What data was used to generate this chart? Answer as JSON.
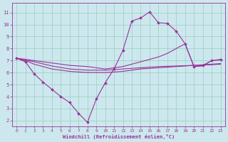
{
  "xlabel": "Windchill (Refroidissement éolien,°C)",
  "bg_color": "#cce8ee",
  "line_color": "#993399",
  "grid_color": "#99ccbb",
  "x_ticks": [
    0,
    1,
    2,
    3,
    4,
    5,
    6,
    7,
    8,
    9,
    10,
    11,
    12,
    13,
    14,
    15,
    16,
    17,
    18,
    19,
    20,
    21,
    22,
    23
  ],
  "y_ticks": [
    2,
    3,
    4,
    5,
    6,
    7,
    8,
    9,
    10,
    11
  ],
  "ylim": [
    1.5,
    11.8
  ],
  "xlim": [
    -0.5,
    23.5
  ],
  "series": [
    {
      "x": [
        0,
        1,
        2,
        3,
        4,
        5,
        6,
        7,
        8,
        9,
        10,
        11,
        12,
        13,
        14,
        15,
        16,
        17,
        18,
        19,
        20,
        21,
        22,
        23
      ],
      "y": [
        7.2,
        6.9,
        5.9,
        5.2,
        4.6,
        4.0,
        3.5,
        2.6,
        1.85,
        3.8,
        5.15,
        6.3,
        7.85,
        10.3,
        10.55,
        11.05,
        10.15,
        10.1,
        9.45,
        8.4,
        6.5,
        6.6,
        7.0,
        7.1
      ],
      "marker": true
    },
    {
      "x": [
        0,
        1,
        2,
        3,
        4,
        5,
        6,
        7,
        8,
        9,
        10,
        11,
        12,
        13,
        14,
        15,
        16,
        17,
        18,
        19,
        20,
        21,
        22,
        23
      ],
      "y": [
        7.2,
        7.0,
        6.7,
        6.5,
        6.3,
        6.2,
        6.1,
        6.05,
        6.0,
        6.0,
        6.0,
        6.05,
        6.1,
        6.2,
        6.3,
        6.35,
        6.4,
        6.45,
        6.5,
        6.55,
        6.6,
        6.65,
        6.7,
        6.75
      ],
      "marker": false
    },
    {
      "x": [
        0,
        2,
        4,
        6,
        8,
        10,
        12,
        14,
        16,
        18,
        20,
        22,
        23
      ],
      "y": [
        7.2,
        6.9,
        6.55,
        6.3,
        6.2,
        6.2,
        6.3,
        6.4,
        6.5,
        6.55,
        6.6,
        6.65,
        6.7
      ],
      "marker": false
    },
    {
      "x": [
        0,
        1,
        2,
        3,
        4,
        5,
        6,
        7,
        8,
        9,
        10,
        11,
        12,
        13,
        14,
        15,
        16,
        17,
        18,
        19,
        20,
        21,
        22,
        23
      ],
      "y": [
        7.2,
        7.1,
        7.0,
        6.9,
        6.8,
        6.7,
        6.6,
        6.55,
        6.5,
        6.4,
        6.3,
        6.4,
        6.5,
        6.7,
        6.9,
        7.1,
        7.3,
        7.6,
        8.0,
        8.4,
        6.5,
        6.55,
        7.0,
        7.05
      ],
      "marker": false
    }
  ]
}
